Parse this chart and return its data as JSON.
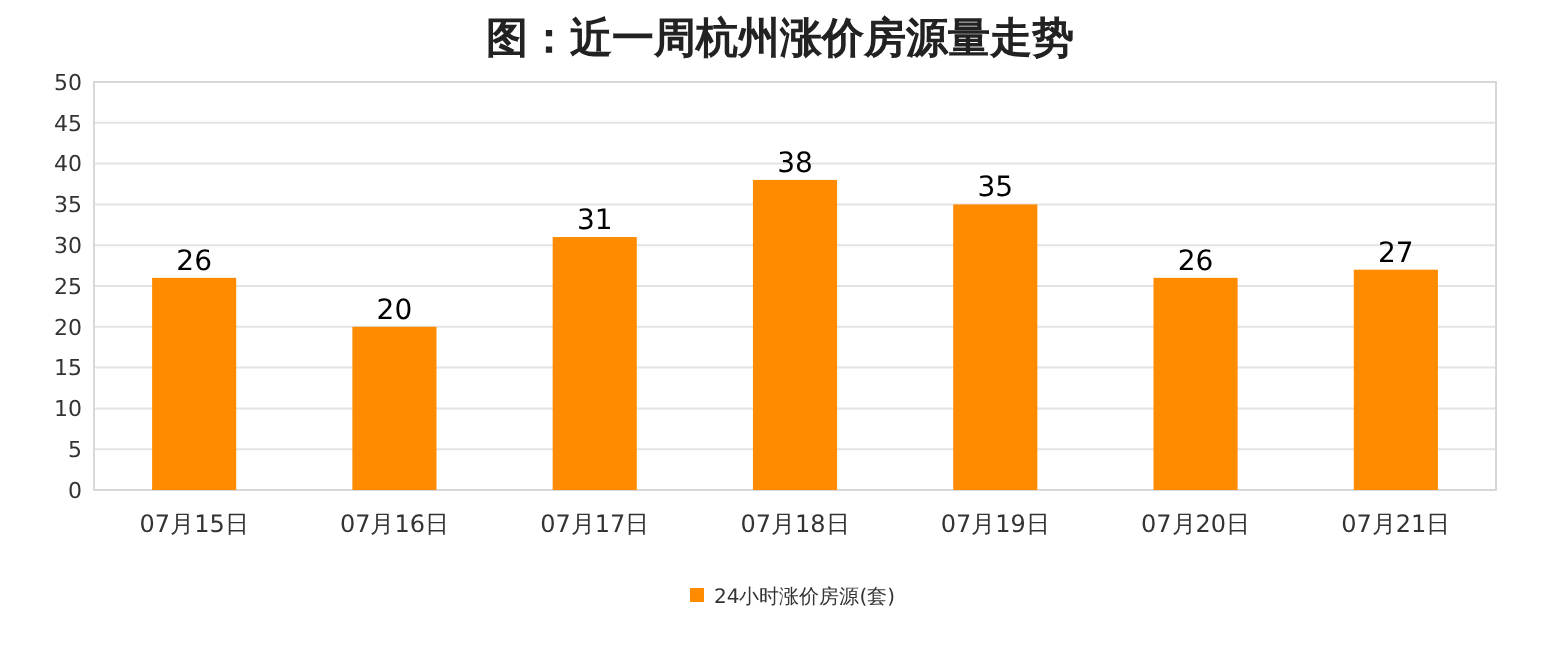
{
  "chart_data": {
    "type": "bar",
    "title": "图：近一周杭州涨价房源量走势",
    "categories": [
      "07月15日",
      "07月16日",
      "07月17日",
      "07月18日",
      "07月19日",
      "07月20日",
      "07月21日"
    ],
    "series": [
      {
        "name": "24小时涨价房源(套)",
        "color": "#ff8c00",
        "values": [
          26,
          20,
          31,
          38,
          35,
          26,
          27
        ]
      }
    ],
    "ylim": [
      0,
      50
    ],
    "yticks": [
      0,
      5,
      10,
      15,
      20,
      25,
      30,
      35,
      40,
      45,
      50
    ],
    "grid": "y",
    "legend": "bottom",
    "data_labels": true
  }
}
